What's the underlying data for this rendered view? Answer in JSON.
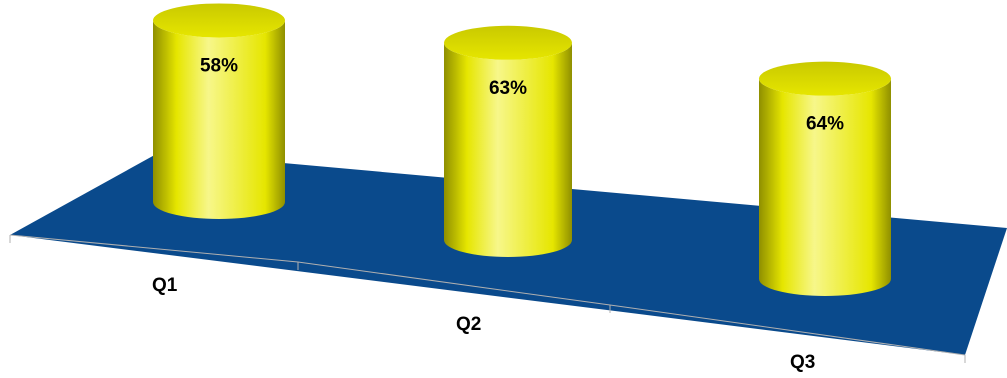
{
  "chart_data": {
    "type": "bar",
    "style": "3d-cylinder",
    "categories": [
      "Q1",
      "Q2",
      "Q3"
    ],
    "values": [
      58,
      63,
      64
    ],
    "data_labels": [
      "58%",
      "63%",
      "64%"
    ],
    "value_unit": "%",
    "title": "",
    "xlabel": "",
    "ylabel": "",
    "grid": false,
    "legend": "none",
    "colors": {
      "bar": "#e6e600",
      "bar_highlight": "#f7f78a",
      "bar_shadow": "#8f8f00",
      "bar_top": "#c9c900",
      "floor": "#0a4a8c",
      "axis": "#b0b0b0"
    }
  }
}
